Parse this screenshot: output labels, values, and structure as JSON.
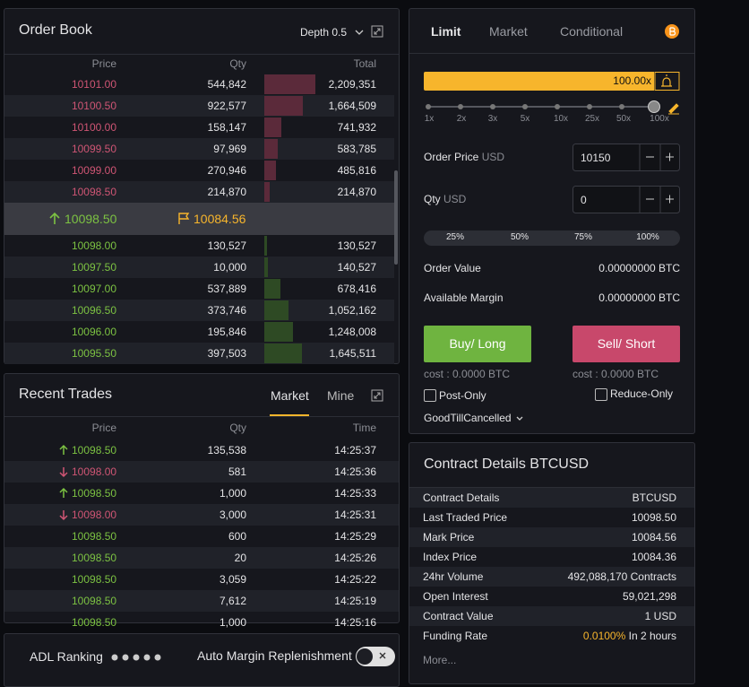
{
  "order_book": {
    "title": "Order Book",
    "depth": "Depth 0.5",
    "columns": [
      "Price",
      "Qty",
      "Total"
    ],
    "asks": [
      {
        "price": "10101.00",
        "qty": "544,842",
        "total": "2,209,351"
      },
      {
        "price": "10100.50",
        "qty": "922,577",
        "total": "1,664,509"
      },
      {
        "price": "10100.00",
        "qty": "158,147",
        "total": "741,932"
      },
      {
        "price": "10099.50",
        "qty": "97,969",
        "total": "583,785"
      },
      {
        "price": "10099.00",
        "qty": "270,946",
        "total": "485,816"
      },
      {
        "price": "10098.50",
        "qty": "214,870",
        "total": "214,870"
      }
    ],
    "last_price": "10098.50",
    "mark_price": "10084.56",
    "bids": [
      {
        "price": "10098.00",
        "qty": "130,527",
        "total": "130,527"
      },
      {
        "price": "10097.50",
        "qty": "10,000",
        "total": "140,527"
      },
      {
        "price": "10097.00",
        "qty": "537,889",
        "total": "678,416"
      },
      {
        "price": "10096.50",
        "qty": "373,746",
        "total": "1,052,162"
      },
      {
        "price": "10096.00",
        "qty": "195,846",
        "total": "1,248,008"
      },
      {
        "price": "10095.50",
        "qty": "397,503",
        "total": "1,645,511"
      }
    ]
  },
  "recent_trades": {
    "title": "Recent Trades",
    "tabs": [
      "Market",
      "Mine"
    ],
    "columns": [
      "Price",
      "Qty",
      "Time"
    ],
    "rows": [
      {
        "price": "10098.50",
        "qty": "135,538",
        "time": "14:25:37",
        "side": "buy",
        "arrow": "up"
      },
      {
        "price": "10098.00",
        "qty": "581",
        "time": "14:25:36",
        "side": "sell",
        "arrow": "down"
      },
      {
        "price": "10098.50",
        "qty": "1,000",
        "time": "14:25:33",
        "side": "buy",
        "arrow": "up"
      },
      {
        "price": "10098.00",
        "qty": "3,000",
        "time": "14:25:31",
        "side": "sell",
        "arrow": "down"
      },
      {
        "price": "10098.50",
        "qty": "600",
        "time": "14:25:29",
        "side": "buy"
      },
      {
        "price": "10098.50",
        "qty": "20",
        "time": "14:25:26",
        "side": "buy"
      },
      {
        "price": "10098.50",
        "qty": "3,059",
        "time": "14:25:22",
        "side": "buy"
      },
      {
        "price": "10098.50",
        "qty": "7,612",
        "time": "14:25:19",
        "side": "buy"
      },
      {
        "price": "10098.50",
        "qty": "1,000",
        "time": "14:25:16",
        "side": "buy"
      }
    ]
  },
  "adl": {
    "label": "ADL Ranking",
    "auto_margin": "Auto Margin Replenishment"
  },
  "order_form": {
    "tabs": [
      "Limit",
      "Market",
      "Conditional"
    ],
    "leverage": "100.00x",
    "leverage_marks": [
      "1x",
      "2x",
      "3x",
      "5x",
      "10x",
      "25x",
      "50x",
      "100x"
    ],
    "order_price_label": "Order Price",
    "currency": "USD",
    "order_price": "10150",
    "qty_label": "Qty",
    "qty": "0",
    "percents": [
      "25%",
      "50%",
      "75%",
      "100%"
    ],
    "order_value_label": "Order Value",
    "order_value": "0.00000000 BTC",
    "available_margin_label": "Available Margin",
    "available_margin": "0.00000000 BTC",
    "buy": "Buy/ Long",
    "sell": "Sell/ Short",
    "buy_cost": "cost : 0.0000 BTC",
    "sell_cost": "cost : 0.0000 BTC",
    "post_only": "Post-Only",
    "reduce_only": "Reduce-Only",
    "time_in_force": "GoodTillCancelled"
  },
  "contract_details": {
    "title": "Contract Details BTCUSD",
    "rows": [
      {
        "label": "Contract Details",
        "value": "BTCUSD"
      },
      {
        "label": "Last Traded Price",
        "value": "10098.50"
      },
      {
        "label": "Mark Price",
        "value": "10084.56"
      },
      {
        "label": "Index Price",
        "value": "10084.36"
      },
      {
        "label": "24hr Volume",
        "value": "492,088,170 Contracts"
      },
      {
        "label": "Open Interest",
        "value": "59,021,298"
      },
      {
        "label": "Contract Value",
        "value": "1 USD"
      },
      {
        "label": "Funding Rate",
        "value": "0.0100%",
        "note": "In 2 hours"
      }
    ],
    "more": "More..."
  }
}
